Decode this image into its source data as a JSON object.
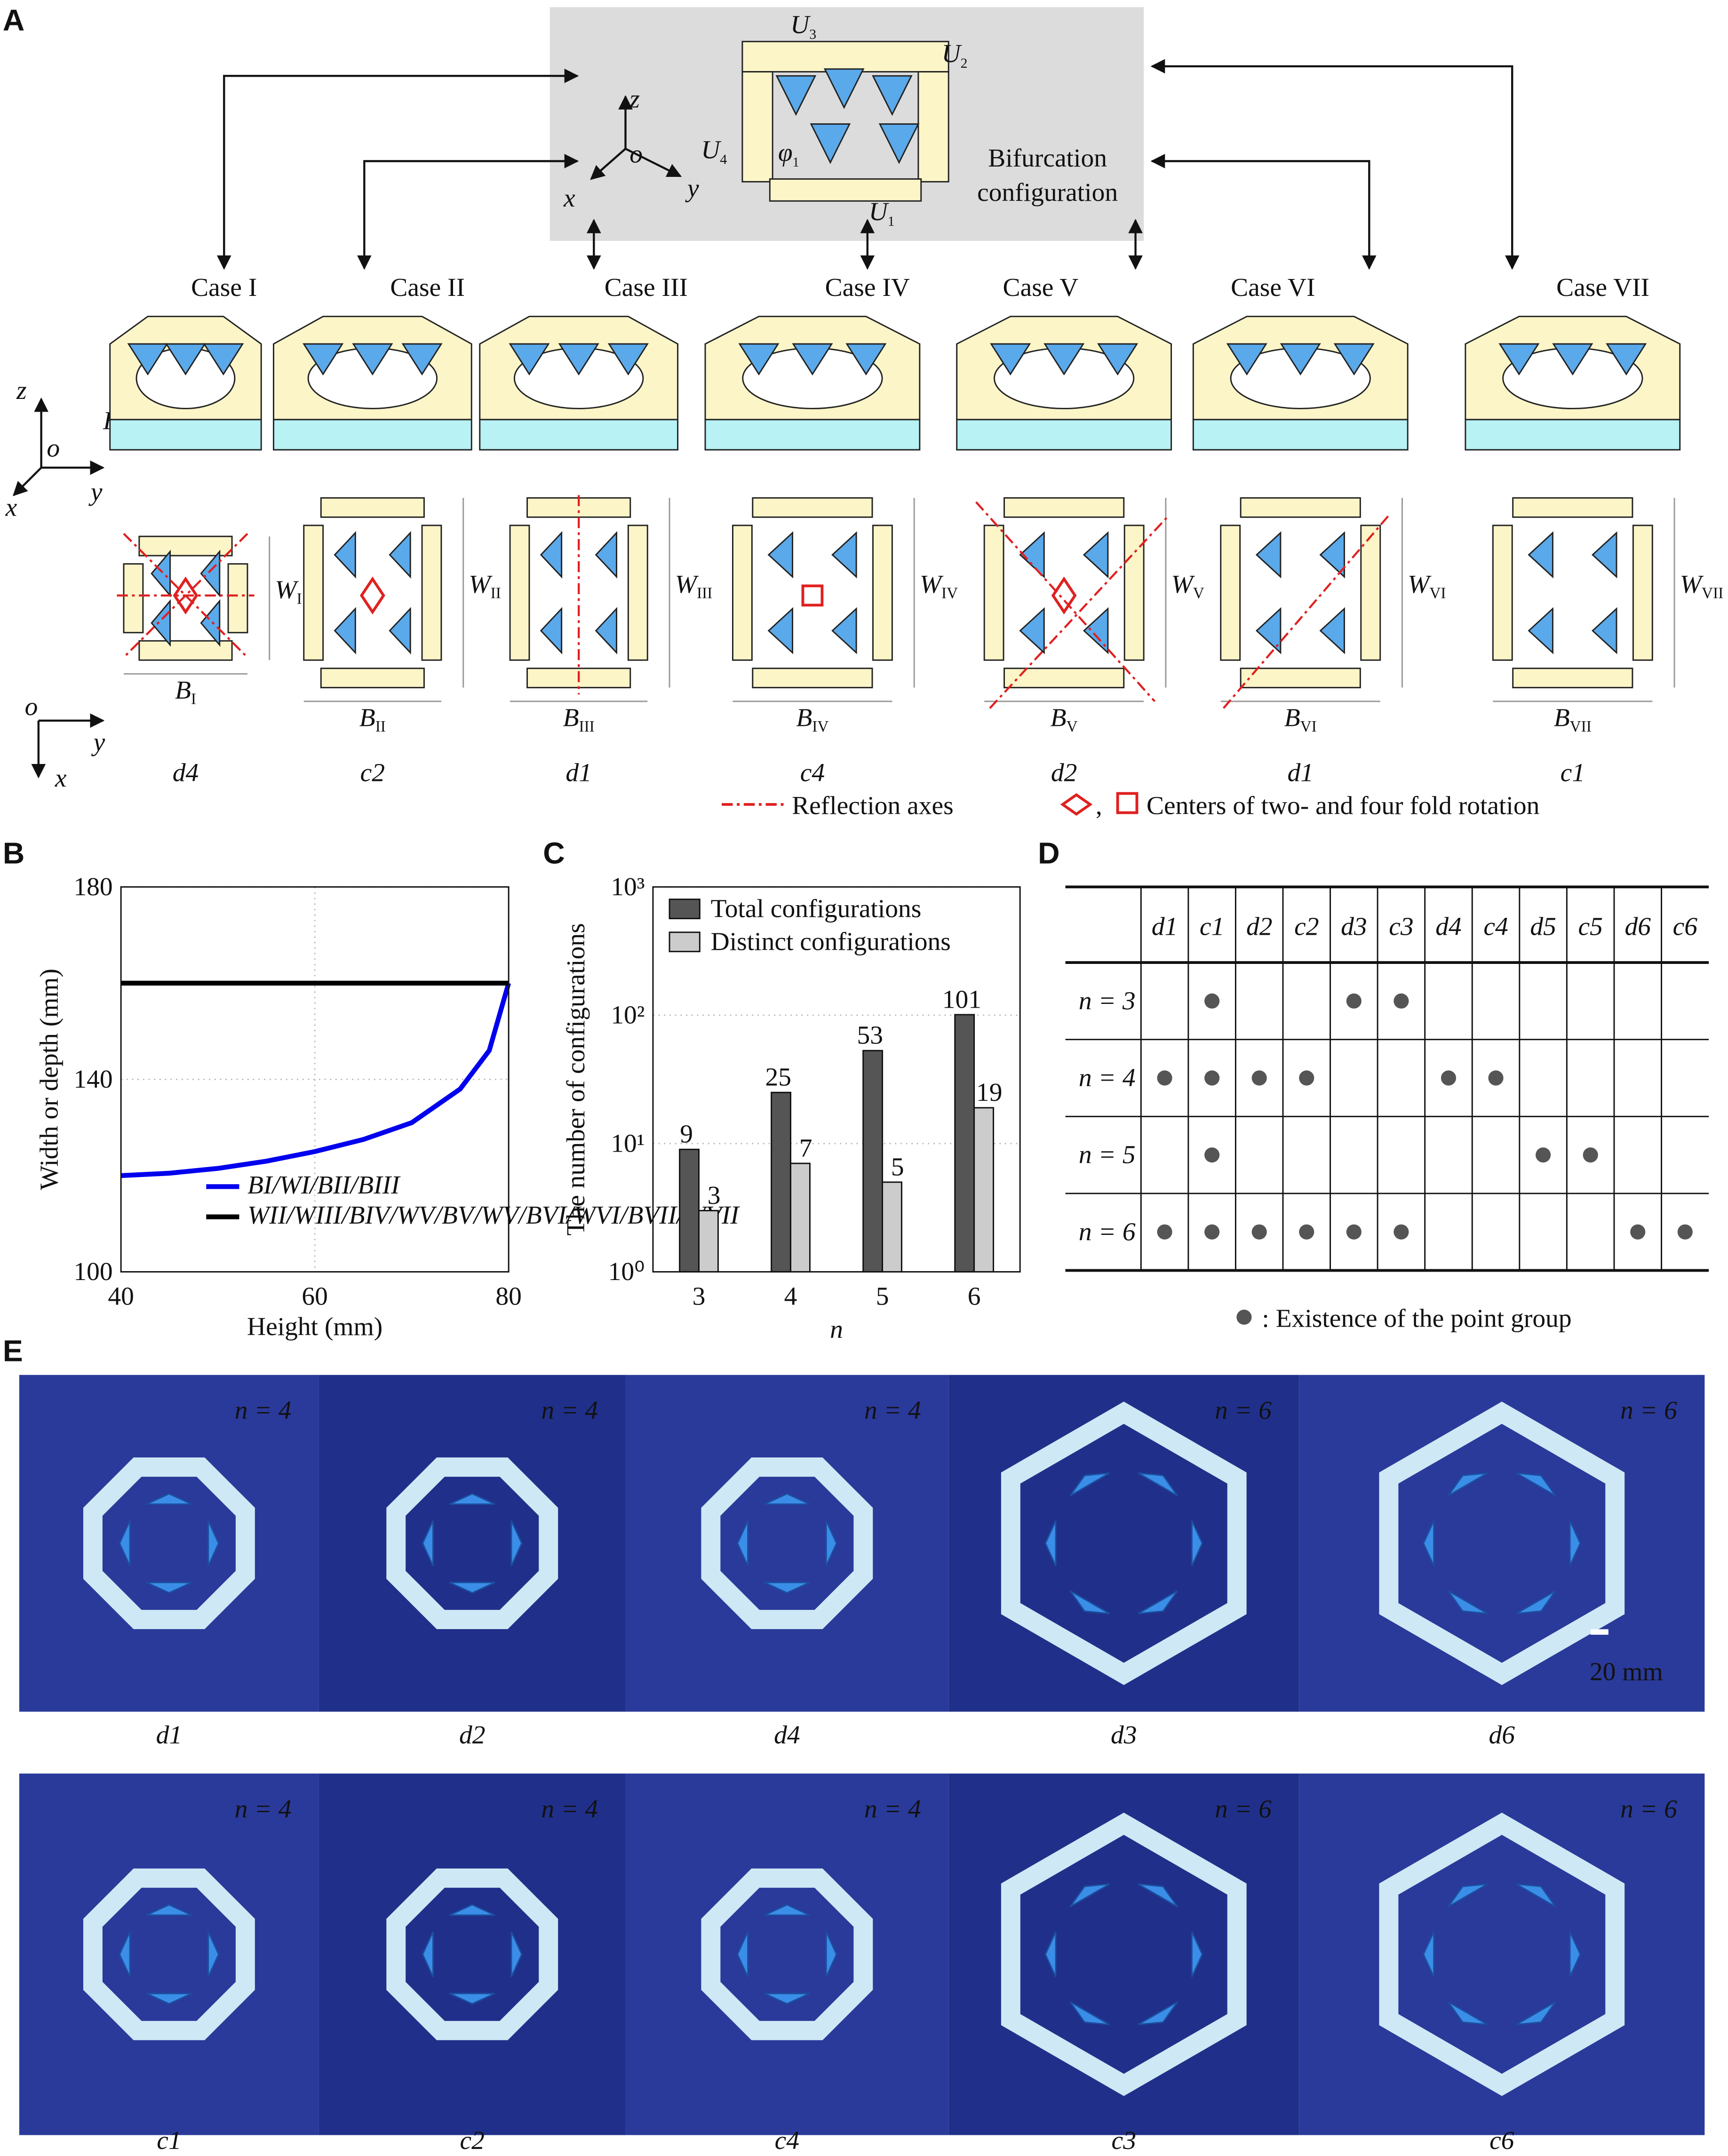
{
  "panel_labels": [
    "A",
    "B",
    "C",
    "D",
    "E"
  ],
  "panel_a": {
    "top_box": {
      "units": [
        {
          "main": "U",
          "sub": "3"
        },
        {
          "main": "U",
          "sub": "2"
        },
        {
          "main": "U",
          "sub": "4"
        },
        {
          "main": "U",
          "sub": "1"
        }
      ],
      "angle": {
        "main": "φ",
        "sub": "1"
      },
      "axes": [
        "z",
        "o",
        "x",
        "y"
      ],
      "caption": [
        "Bifurcation",
        "configuration"
      ]
    },
    "side_axes": [
      "z",
      "o",
      "x",
      "y"
    ],
    "height_label": "H",
    "plan_axes": [
      "o",
      "y",
      "x"
    ],
    "cases": [
      {
        "label": "Case I",
        "width": {
          "main": "W",
          "sub": "I"
        },
        "depth": {
          "main": "B",
          "sub": "I"
        },
        "point_group": "d4"
      },
      {
        "label": "Case II",
        "width": {
          "main": "W",
          "sub": "II"
        },
        "depth": {
          "main": "B",
          "sub": "II"
        },
        "point_group": "c2"
      },
      {
        "label": "Case III",
        "width": {
          "main": "W",
          "sub": "III"
        },
        "depth": {
          "main": "B",
          "sub": "III"
        },
        "point_group": "d1"
      },
      {
        "label": "Case IV",
        "width": {
          "main": "W",
          "sub": "IV"
        },
        "depth": {
          "main": "B",
          "sub": "IV"
        },
        "point_group": "c4"
      },
      {
        "label": "Case V",
        "width": {
          "main": "W",
          "sub": "V"
        },
        "depth": {
          "main": "B",
          "sub": "V"
        },
        "point_group": "d2"
      },
      {
        "label": "Case VI",
        "width": {
          "main": "W",
          "sub": "VI"
        },
        "depth": {
          "main": "B",
          "sub": "VI"
        },
        "point_group": "d1"
      },
      {
        "label": "Case VII",
        "width": {
          "main": "W",
          "sub": "VII"
        },
        "depth": {
          "main": "B",
          "sub": "VII"
        },
        "point_group": "c1"
      }
    ],
    "legend": {
      "axes": "Reflection axes",
      "centers": "Centers of two- and four fold rotation",
      "separator": ","
    }
  },
  "chart_data": [
    {
      "type": "line",
      "x_label": "Height (mm)",
      "y_label": "Width or depth (mm)",
      "x": [
        40,
        45,
        50,
        55,
        60,
        65,
        70,
        75,
        78,
        80
      ],
      "series": [
        {
          "name": "BI/WI/BII/BIII",
          "color": "#0000ee",
          "values": [
            120,
            120.5,
            121.5,
            123,
            125,
            127.5,
            131,
            138,
            146,
            160
          ]
        },
        {
          "name": "WII/WIII/BIV/WV/BV/WV/BVI/WVI/BVII/WVII",
          "color": "#000000",
          "values": [
            160,
            160,
            160,
            160,
            160,
            160,
            160,
            160,
            160,
            160
          ]
        }
      ],
      "xlim": [
        40,
        80
      ],
      "xticks": [
        40,
        60,
        80
      ],
      "ylim": [
        100,
        180
      ],
      "yticks": [
        100,
        140,
        180
      ],
      "grid": true,
      "legend": "lower-right"
    },
    {
      "type": "bar",
      "x_label": "n",
      "y_label": "The number of configurations",
      "categories": [
        "3",
        "4",
        "5",
        "6"
      ],
      "series": [
        {
          "name": "Total configurations",
          "color": "#555555",
          "values": [
            9,
            25,
            53,
            101
          ]
        },
        {
          "name": "Distinct configurations",
          "color": "#cccccc",
          "values": [
            3,
            7,
            5,
            19
          ]
        }
      ],
      "ylim": [
        1,
        1000
      ],
      "log_scale": true,
      "yticks": [
        {
          "value": 1,
          "label": "10⁰"
        },
        {
          "value": 10,
          "label": "10¹"
        },
        {
          "value": 100,
          "label": "10²"
        },
        {
          "value": 1000,
          "label": "10³"
        }
      ],
      "grid": true,
      "legend": "upper-left"
    }
  ],
  "panel_d": {
    "columns": [
      "d1",
      "c1",
      "d2",
      "c2",
      "d3",
      "c3",
      "d4",
      "c4",
      "d5",
      "c5",
      "d6",
      "c6"
    ],
    "rows": [
      {
        "label": "n = 3",
        "marks": [
          false,
          true,
          false,
          false,
          true,
          true,
          false,
          false,
          false,
          false,
          false,
          false
        ]
      },
      {
        "label": "n = 4",
        "marks": [
          true,
          true,
          true,
          true,
          false,
          false,
          true,
          true,
          false,
          false,
          false,
          false
        ]
      },
      {
        "label": "n = 5",
        "marks": [
          false,
          true,
          false,
          false,
          false,
          false,
          false,
          false,
          true,
          true,
          false,
          false
        ]
      },
      {
        "label": "n = 6",
        "marks": [
          true,
          true,
          true,
          true,
          true,
          true,
          false,
          false,
          false,
          false,
          true,
          true
        ]
      }
    ],
    "note": ": Existence of the point group"
  },
  "panel_e": {
    "scale_bar": "20 mm",
    "rows": [
      [
        {
          "n": "n = 4",
          "caption": "d1"
        },
        {
          "n": "n = 4",
          "caption": "d2"
        },
        {
          "n": "n = 4",
          "caption": "d4"
        },
        {
          "n": "n = 6",
          "caption": "d3"
        },
        {
          "n": "n = 6",
          "caption": "d6"
        }
      ],
      [
        {
          "n": "n = 4",
          "caption": "c1"
        },
        {
          "n": "n = 4",
          "caption": "c2"
        },
        {
          "n": "n = 4",
          "caption": "c4"
        },
        {
          "n": "n = 6",
          "caption": "c3"
        },
        {
          "n": "n = 6",
          "caption": "c6"
        }
      ]
    ]
  }
}
